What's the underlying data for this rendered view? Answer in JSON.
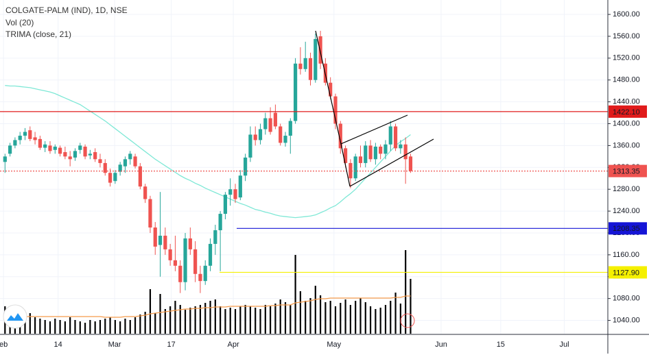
{
  "chart_data": {
    "type": "candlestick",
    "title": "COLGATE-PALM (IND), 1D, NSE",
    "volume_label": "Vol (20)",
    "indicator_label": "TRIMA (close, 21)",
    "up_color": "#26a69a",
    "down_color": "#ef5350",
    "volume_color": "#000000",
    "trima_color": "#7ee8d6",
    "vol_ma_color": "#f59a4a",
    "grid": true,
    "xlim": [
      -1,
      120.4
    ],
    "ylim": [
      1015.6,
      1626.4
    ],
    "vol_ylim": [
      0,
      400
    ],
    "xticks": [
      {
        "value": -0.3,
        "label": "eb"
      },
      {
        "value": 10.6,
        "label": "14"
      },
      {
        "value": 21.9,
        "label": "Mar"
      },
      {
        "value": 33.2,
        "label": "17"
      },
      {
        "value": 45.6,
        "label": "Apr"
      },
      {
        "value": 65.7,
        "label": "May"
      },
      {
        "value": 87.1,
        "label": "Jun"
      },
      {
        "value": 99,
        "label": "15"
      },
      {
        "value": 111.7,
        "label": "Jul"
      }
    ],
    "yticks": [
      {
        "value": 1040,
        "label": "1040.00"
      },
      {
        "value": 1080,
        "label": "1080.00"
      },
      {
        "value": 1120,
        "label": "1120.00"
      },
      {
        "value": 1160,
        "label": "1160.00"
      },
      {
        "value": 1200,
        "label": "1200.00"
      },
      {
        "value": 1240,
        "label": "1240.00"
      },
      {
        "value": 1280,
        "label": "1280.00"
      },
      {
        "value": 1320,
        "label": "1320.00"
      },
      {
        "value": 1360,
        "label": "1360.00"
      },
      {
        "value": 1400,
        "label": "1400.00"
      },
      {
        "value": 1440,
        "label": "1440.00"
      },
      {
        "value": 1480,
        "label": "1480.00"
      },
      {
        "value": 1520,
        "label": "1520.00"
      },
      {
        "value": 1560,
        "label": "1560.00"
      },
      {
        "value": 1600,
        "label": "1600.00"
      }
    ],
    "levels": [
      {
        "value": 1422.1,
        "label": "1422.10",
        "color": "#e01b1b"
      },
      {
        "value": 1313.35,
        "color": "#ef5350"
      },
      {
        "value": 1208.35,
        "color": "#1515d6"
      },
      {
        "value": 1127.9,
        "label": "1127.90",
        "color": "#f5f000"
      }
    ],
    "open": [
      1330,
      1345,
      1360,
      1370,
      1378,
      1388,
      1375,
      1372,
      1356,
      1360,
      1352,
      1356,
      1348,
      1340,
      1338,
      1352,
      1358,
      1342,
      1348,
      1335,
      1328,
      1310,
      1295,
      1312,
      1322,
      1335,
      1340,
      1322,
      1285,
      1262,
      1210,
      1178,
      1195,
      1170,
      1150,
      1140,
      1110,
      1190,
      1170,
      1125,
      1112,
      1140,
      1180,
      1205,
      1235,
      1270,
      1280,
      1265,
      1305,
      1338,
      1380,
      1370,
      1390,
      1410,
      1420,
      1395,
      1365,
      1378,
      1405,
      1510,
      1500,
      1520,
      1480,
      1560,
      1510,
      1475,
      1450,
      1400,
      1355,
      1328,
      1300,
      1340,
      1328,
      1360,
      1335,
      1358,
      1345,
      1362,
      1395,
      1355,
      1362,
      1340
    ],
    "high": [
      1345,
      1365,
      1375,
      1385,
      1392,
      1395,
      1385,
      1378,
      1368,
      1368,
      1362,
      1360,
      1358,
      1350,
      1355,
      1365,
      1362,
      1352,
      1355,
      1345,
      1335,
      1318,
      1315,
      1330,
      1340,
      1350,
      1345,
      1328,
      1290,
      1268,
      1220,
      1275,
      1210,
      1180,
      1195,
      1150,
      1200,
      1210,
      1185,
      1140,
      1150,
      1190,
      1215,
      1240,
      1275,
      1300,
      1290,
      1315,
      1345,
      1395,
      1395,
      1400,
      1420,
      1430,
      1435,
      1400,
      1385,
      1410,
      1520,
      1540,
      1550,
      1530,
      1565,
      1570,
      1520,
      1485,
      1455,
      1405,
      1360,
      1335,
      1345,
      1360,
      1368,
      1370,
      1365,
      1362,
      1370,
      1405,
      1400,
      1370,
      1375,
      1345
    ],
    "low": [
      1310,
      1340,
      1355,
      1362,
      1370,
      1368,
      1362,
      1352,
      1348,
      1345,
      1345,
      1340,
      1335,
      1322,
      1332,
      1345,
      1335,
      1335,
      1330,
      1320,
      1305,
      1285,
      1290,
      1305,
      1310,
      1325,
      1318,
      1280,
      1255,
      1200,
      1160,
      1120,
      1160,
      1140,
      1130,
      1090,
      1095,
      1160,
      1110,
      1090,
      1105,
      1130,
      1160,
      1130,
      1225,
      1250,
      1255,
      1260,
      1295,
      1330,
      1360,
      1362,
      1380,
      1380,
      1390,
      1360,
      1358,
      1345,
      1400,
      1490,
      1495,
      1470,
      1475,
      1500,
      1470,
      1445,
      1390,
      1345,
      1320,
      1282,
      1295,
      1320,
      1320,
      1330,
      1325,
      1335,
      1335,
      1350,
      1350,
      1345,
      1290,
      1310
    ],
    "close": [
      1340,
      1360,
      1370,
      1378,
      1385,
      1372,
      1370,
      1356,
      1362,
      1350,
      1358,
      1345,
      1340,
      1335,
      1350,
      1360,
      1340,
      1345,
      1335,
      1328,
      1310,
      1292,
      1310,
      1325,
      1335,
      1345,
      1322,
      1285,
      1262,
      1210,
      1175,
      1195,
      1170,
      1150,
      1140,
      1110,
      1190,
      1170,
      1125,
      1112,
      1140,
      1180,
      1205,
      1235,
      1270,
      1280,
      1262,
      1305,
      1338,
      1380,
      1370,
      1390,
      1410,
      1385,
      1395,
      1365,
      1378,
      1405,
      1510,
      1500,
      1520,
      1480,
      1555,
      1510,
      1475,
      1450,
      1400,
      1355,
      1328,
      1300,
      1340,
      1328,
      1360,
      1335,
      1358,
      1345,
      1362,
      1395,
      1355,
      1362,
      1335,
      1313.35
    ],
    "volume": [
      40,
      28,
      22,
      20,
      25,
      30,
      24,
      22,
      20,
      18,
      22,
      20,
      18,
      24,
      20,
      18,
      16,
      20,
      18,
      20,
      22,
      24,
      20,
      18,
      22,
      20,
      24,
      28,
      32,
      65,
      30,
      58,
      36,
      40,
      48,
      42,
      35,
      38,
      40,
      42,
      45,
      48,
      50,
      40,
      36,
      38,
      36,
      40,
      42,
      40,
      38,
      36,
      42,
      40,
      44,
      50,
      46,
      42,
      115,
      62,
      48,
      52,
      70,
      56,
      46,
      48,
      40,
      45,
      50,
      42,
      48,
      52,
      46,
      40,
      36,
      38,
      42,
      48,
      60,
      44,
      122,
      80
    ],
    "vol_ma": [
      25,
      25,
      25,
      25,
      25,
      25,
      25,
      25,
      25,
      25,
      25,
      25,
      25,
      25,
      25,
      25,
      25,
      25,
      25,
      25,
      24,
      24,
      24,
      24,
      25,
      25,
      25,
      26,
      27,
      29,
      30,
      31,
      32,
      33,
      34,
      35,
      36,
      36,
      37,
      37,
      38,
      38,
      39,
      39,
      39,
      40,
      40,
      40,
      40,
      40,
      40,
      40,
      40,
      41,
      41,
      42,
      42,
      42,
      45,
      46,
      47,
      48,
      50,
      51,
      51,
      52,
      52,
      52,
      52,
      52,
      52,
      52,
      52,
      52,
      52,
      52,
      52,
      52,
      53,
      53,
      55,
      55
    ],
    "trima": [
      1470,
      1469,
      1469,
      1468,
      1467,
      1466,
      1464,
      1462,
      1460,
      1458,
      1455,
      1451,
      1447,
      1443,
      1439,
      1435,
      1429,
      1423,
      1417,
      1411,
      1405,
      1398,
      1391,
      1384,
      1377,
      1370,
      1363,
      1356,
      1349,
      1342,
      1335,
      1329,
      1323,
      1317,
      1311,
      1305,
      1300,
      1296,
      1291,
      1287,
      1282,
      1278,
      1274,
      1270,
      1266,
      1262,
      1258,
      1254,
      1251,
      1247,
      1243,
      1241,
      1238,
      1236,
      1233,
      1231,
      1230,
      1229,
      1228,
      1229,
      1230,
      1231,
      1233,
      1237,
      1241,
      1246,
      1250,
      1257,
      1265,
      1272,
      1280,
      1290,
      1300,
      1310,
      1320,
      1330,
      1340,
      1350,
      1360,
      1367,
      1373,
      1380
    ]
  }
}
